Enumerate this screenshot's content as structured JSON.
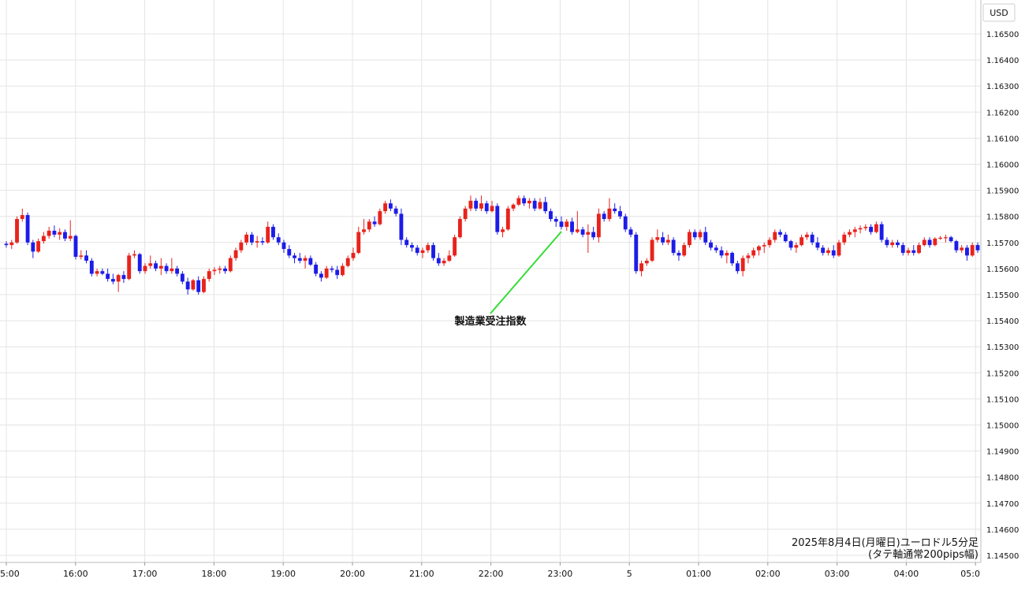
{
  "chart_data": {
    "type": "candlestick",
    "currency_label": "USD",
    "y_ticks": [
      "1.16500",
      "1.16400",
      "1.16300",
      "1.16200",
      "1.16100",
      "1.16000",
      "1.15900",
      "1.15800",
      "1.15700",
      "1.15600",
      "1.15500",
      "1.15400",
      "1.15300",
      "1.15200",
      "1.15100",
      "1.15000",
      "1.14900",
      "1.14800",
      "1.14700",
      "1.14600",
      "1.14500"
    ],
    "ylim": [
      1.1445,
      1.1655
    ],
    "x_ticks": [
      "5:00",
      "16:00",
      "17:00",
      "18:00",
      "19:00",
      "20:00",
      "21:00",
      "22:00",
      "23:00",
      "5",
      "01:00",
      "02:00",
      "03:00",
      "04:00",
      "05:0"
    ],
    "event_label": "製造業受注指数",
    "caption_line1": "2025年8月4日(月曜日)ユーロドル5分足",
    "caption_line2": "(タテ軸通常200pips幅)",
    "colors": {
      "up": "#e8231c",
      "down": "#1c1ce8",
      "grid": "#e4e4e4",
      "event_line": "#33dd33",
      "text": "#111111"
    },
    "candles": [
      [
        1.15695,
        1.15705,
        1.1568,
        1.1569
      ],
      [
        1.1569,
        1.1571,
        1.15675,
        1.157
      ],
      [
        1.157,
        1.158,
        1.15695,
        1.1579
      ],
      [
        1.1579,
        1.1583,
        1.1578,
        1.15805
      ],
      [
        1.15805,
        1.15815,
        1.1569,
        1.157
      ],
      [
        1.157,
        1.1571,
        1.1564,
        1.15665
      ],
      [
        1.15665,
        1.15715,
        1.1566,
        1.15705
      ],
      [
        1.15705,
        1.1574,
        1.15695,
        1.15725
      ],
      [
        1.15725,
        1.1576,
        1.15715,
        1.15745
      ],
      [
        1.15745,
        1.15765,
        1.1572,
        1.1573
      ],
      [
        1.1573,
        1.15755,
        1.1571,
        1.1574
      ],
      [
        1.1574,
        1.1575,
        1.15705,
        1.15715
      ],
      [
        1.15715,
        1.15785,
        1.15705,
        1.15725
      ],
      [
        1.15725,
        1.1573,
        1.15635,
        1.15645
      ],
      [
        1.15645,
        1.1567,
        1.15635,
        1.1565
      ],
      [
        1.1565,
        1.1567,
        1.1562,
        1.1563
      ],
      [
        1.1563,
        1.1564,
        1.1557,
        1.1558
      ],
      [
        1.1558,
        1.156,
        1.1557,
        1.1559
      ],
      [
        1.1559,
        1.156,
        1.15575,
        1.1558
      ],
      [
        1.1558,
        1.156,
        1.1555,
        1.1556
      ],
      [
        1.1556,
        1.1558,
        1.1554,
        1.1555
      ],
      [
        1.1555,
        1.1558,
        1.1551,
        1.15575
      ],
      [
        1.15575,
        1.1559,
        1.15545,
        1.1556
      ],
      [
        1.1556,
        1.1566,
        1.15555,
        1.1565
      ],
      [
        1.1565,
        1.1567,
        1.1564,
        1.15655
      ],
      [
        1.15655,
        1.1566,
        1.1558,
        1.1559
      ],
      [
        1.1559,
        1.1562,
        1.1558,
        1.1561
      ],
      [
        1.1561,
        1.1565,
        1.156,
        1.1562
      ],
      [
        1.1562,
        1.1563,
        1.1559,
        1.156
      ],
      [
        1.156,
        1.1564,
        1.15575,
        1.1561
      ],
      [
        1.1561,
        1.1562,
        1.1558,
        1.1559
      ],
      [
        1.1559,
        1.1564,
        1.1558,
        1.156
      ],
      [
        1.156,
        1.1561,
        1.1557,
        1.1558
      ],
      [
        1.1558,
        1.1559,
        1.1554,
        1.1555
      ],
      [
        1.1555,
        1.15565,
        1.155,
        1.1552
      ],
      [
        1.1552,
        1.1556,
        1.15515,
        1.15555
      ],
      [
        1.15555,
        1.1557,
        1.155,
        1.1551
      ],
      [
        1.1551,
        1.1557,
        1.15505,
        1.1556
      ],
      [
        1.1556,
        1.156,
        1.1555,
        1.1559
      ],
      [
        1.1559,
        1.15605,
        1.15575,
        1.15595
      ],
      [
        1.15595,
        1.1561,
        1.1558,
        1.156
      ],
      [
        1.156,
        1.1561,
        1.1558,
        1.1559
      ],
      [
        1.1559,
        1.1565,
        1.15585,
        1.1564
      ],
      [
        1.1564,
        1.1568,
        1.1563,
        1.1567
      ],
      [
        1.1567,
        1.1571,
        1.1566,
        1.157
      ],
      [
        1.157,
        1.1574,
        1.1569,
        1.1573
      ],
      [
        1.1573,
        1.1574,
        1.1569,
        1.157
      ],
      [
        1.157,
        1.15725,
        1.1568,
        1.15705
      ],
      [
        1.15705,
        1.1572,
        1.1569,
        1.157
      ],
      [
        1.157,
        1.1578,
        1.15695,
        1.1576
      ],
      [
        1.1576,
        1.1577,
        1.1571,
        1.1572
      ],
      [
        1.1572,
        1.15735,
        1.1569,
        1.157
      ],
      [
        1.157,
        1.1571,
        1.1566,
        1.15675
      ],
      [
        1.15675,
        1.1569,
        1.1564,
        1.1565
      ],
      [
        1.1565,
        1.1566,
        1.1562,
        1.1564
      ],
      [
        1.1564,
        1.1566,
        1.1562,
        1.1563
      ],
      [
        1.1563,
        1.1565,
        1.156,
        1.1564
      ],
      [
        1.1564,
        1.1565,
        1.1561,
        1.15615
      ],
      [
        1.15615,
        1.15625,
        1.1557,
        1.1558
      ],
      [
        1.1558,
        1.1559,
        1.1555,
        1.15565
      ],
      [
        1.15565,
        1.1561,
        1.1556,
        1.156
      ],
      [
        1.156,
        1.1561,
        1.15585,
        1.15595
      ],
      [
        1.15595,
        1.1561,
        1.1556,
        1.15575
      ],
      [
        1.15575,
        1.1562,
        1.1557,
        1.1561
      ],
      [
        1.1561,
        1.1565,
        1.15605,
        1.1564
      ],
      [
        1.1564,
        1.1568,
        1.1563,
        1.1566
      ],
      [
        1.1566,
        1.1576,
        1.15655,
        1.1574
      ],
      [
        1.1574,
        1.1579,
        1.1573,
        1.1575
      ],
      [
        1.1575,
        1.1579,
        1.1574,
        1.1578
      ],
      [
        1.1578,
        1.158,
        1.1576,
        1.1577
      ],
      [
        1.1577,
        1.1583,
        1.15765,
        1.1582
      ],
      [
        1.1582,
        1.1586,
        1.1581,
        1.1585
      ],
      [
        1.1585,
        1.15865,
        1.1582,
        1.1583
      ],
      [
        1.1583,
        1.1584,
        1.158,
        1.1581
      ],
      [
        1.1581,
        1.1583,
        1.1569,
        1.1571
      ],
      [
        1.1571,
        1.1572,
        1.1568,
        1.1569
      ],
      [
        1.1569,
        1.157,
        1.15665,
        1.1568
      ],
      [
        1.1568,
        1.1569,
        1.1565,
        1.1566
      ],
      [
        1.1566,
        1.1568,
        1.1564,
        1.1567
      ],
      [
        1.1567,
        1.157,
        1.1566,
        1.1569
      ],
      [
        1.1569,
        1.157,
        1.1563,
        1.1564
      ],
      [
        1.1564,
        1.1566,
        1.1561,
        1.1562
      ],
      [
        1.1562,
        1.1564,
        1.1561,
        1.1563
      ],
      [
        1.1563,
        1.1567,
        1.15625,
        1.1565
      ],
      [
        1.1565,
        1.1573,
        1.15645,
        1.1572
      ],
      [
        1.1572,
        1.158,
        1.15715,
        1.1579
      ],
      [
        1.1579,
        1.1584,
        1.1578,
        1.1583
      ],
      [
        1.1583,
        1.1588,
        1.1582,
        1.1586
      ],
      [
        1.1586,
        1.1587,
        1.1582,
        1.1583
      ],
      [
        1.1583,
        1.1588,
        1.1582,
        1.1585
      ],
      [
        1.1585,
        1.1586,
        1.1581,
        1.1582
      ],
      [
        1.1582,
        1.1586,
        1.15815,
        1.1584
      ],
      [
        1.1584,
        1.1585,
        1.1573,
        1.1574
      ],
      [
        1.1574,
        1.1576,
        1.1572,
        1.1575
      ],
      [
        1.1575,
        1.1584,
        1.15745,
        1.1583
      ],
      [
        1.1583,
        1.1585,
        1.1582,
        1.15845
      ],
      [
        1.15845,
        1.1588,
        1.1584,
        1.1587
      ],
      [
        1.1587,
        1.1588,
        1.1584,
        1.1585
      ],
      [
        1.1585,
        1.1587,
        1.1583,
        1.1586
      ],
      [
        1.1586,
        1.1587,
        1.1582,
        1.1583
      ],
      [
        1.1583,
        1.1587,
        1.15825,
        1.15855
      ],
      [
        1.15855,
        1.15875,
        1.1581,
        1.1582
      ],
      [
        1.1582,
        1.1583,
        1.1578,
        1.1579
      ],
      [
        1.1579,
        1.158,
        1.1576,
        1.1578
      ],
      [
        1.1578,
        1.158,
        1.1575,
        1.1576
      ],
      [
        1.1576,
        1.1579,
        1.15745,
        1.1578
      ],
      [
        1.1578,
        1.15795,
        1.1573,
        1.1574
      ],
      [
        1.1574,
        1.1582,
        1.15735,
        1.1575
      ],
      [
        1.1575,
        1.1576,
        1.1572,
        1.1573
      ],
      [
        1.1573,
        1.1577,
        1.1566,
        1.1574
      ],
      [
        1.1574,
        1.1576,
        1.1571,
        1.1572
      ],
      [
        1.1572,
        1.1583,
        1.157,
        1.1581
      ],
      [
        1.1581,
        1.1582,
        1.1578,
        1.1579
      ],
      [
        1.1579,
        1.1587,
        1.1578,
        1.1583
      ],
      [
        1.1583,
        1.1585,
        1.1581,
        1.1582
      ],
      [
        1.1582,
        1.1584,
        1.1579,
        1.158
      ],
      [
        1.158,
        1.1581,
        1.1574,
        1.1575
      ],
      [
        1.1575,
        1.1576,
        1.1572,
        1.1573
      ],
      [
        1.1573,
        1.1574,
        1.1558,
        1.1559
      ],
      [
        1.1559,
        1.1563,
        1.1557,
        1.1562
      ],
      [
        1.1562,
        1.1564,
        1.1561,
        1.1563
      ],
      [
        1.1563,
        1.1572,
        1.15625,
        1.1571
      ],
      [
        1.1571,
        1.1575,
        1.157,
        1.1572
      ],
      [
        1.1572,
        1.1574,
        1.1569,
        1.157
      ],
      [
        1.157,
        1.1573,
        1.1569,
        1.1571
      ],
      [
        1.1571,
        1.1572,
        1.1565,
        1.1566
      ],
      [
        1.1566,
        1.1567,
        1.1563,
        1.1565
      ],
      [
        1.1565,
        1.157,
        1.15645,
        1.1569
      ],
      [
        1.1569,
        1.1575,
        1.1568,
        1.1574
      ],
      [
        1.1574,
        1.1575,
        1.1571,
        1.1572
      ],
      [
        1.1572,
        1.1575,
        1.1571,
        1.1574
      ],
      [
        1.1574,
        1.1576,
        1.1569,
        1.157
      ],
      [
        1.157,
        1.1571,
        1.1567,
        1.1568
      ],
      [
        1.1568,
        1.1569,
        1.1566,
        1.1567
      ],
      [
        1.1567,
        1.15685,
        1.1564,
        1.1565
      ],
      [
        1.1565,
        1.1567,
        1.1562,
        1.1566
      ],
      [
        1.1566,
        1.15665,
        1.1561,
        1.1562
      ],
      [
        1.1562,
        1.1563,
        1.1558,
        1.1559
      ],
      [
        1.1559,
        1.1565,
        1.1557,
        1.1564
      ],
      [
        1.1564,
        1.1566,
        1.1562,
        1.1565
      ],
      [
        1.1565,
        1.1568,
        1.1564,
        1.1567
      ],
      [
        1.1567,
        1.1569,
        1.1565,
        1.15685
      ],
      [
        1.15685,
        1.157,
        1.1566,
        1.1569
      ],
      [
        1.1569,
        1.1572,
        1.1568,
        1.1571
      ],
      [
        1.1571,
        1.1575,
        1.157,
        1.1574
      ],
      [
        1.1574,
        1.1575,
        1.1572,
        1.1573
      ],
      [
        1.1573,
        1.1574,
        1.157,
        1.15705
      ],
      [
        1.15705,
        1.1571,
        1.1567,
        1.1568
      ],
      [
        1.1568,
        1.157,
        1.1566,
        1.1569
      ],
      [
        1.1569,
        1.1573,
        1.15685,
        1.1572
      ],
      [
        1.1572,
        1.1574,
        1.1571,
        1.1573
      ],
      [
        1.1573,
        1.1574,
        1.1569,
        1.157
      ],
      [
        1.157,
        1.1572,
        1.1567,
        1.1568
      ],
      [
        1.1568,
        1.1569,
        1.1565,
        1.1566
      ],
      [
        1.1566,
        1.1568,
        1.1565,
        1.1567
      ],
      [
        1.1567,
        1.1569,
        1.1564,
        1.1565
      ],
      [
        1.1565,
        1.1571,
        1.15645,
        1.157
      ],
      [
        1.157,
        1.1574,
        1.1569,
        1.1573
      ],
      [
        1.1573,
        1.1575,
        1.1572,
        1.1574
      ],
      [
        1.1574,
        1.1576,
        1.1572,
        1.1575
      ],
      [
        1.1575,
        1.15765,
        1.15735,
        1.15755
      ],
      [
        1.15755,
        1.1577,
        1.15745,
        1.1576
      ],
      [
        1.1576,
        1.1577,
        1.1573,
        1.1574
      ],
      [
        1.1574,
        1.1578,
        1.15735,
        1.1577
      ],
      [
        1.1577,
        1.1578,
        1.157,
        1.1571
      ],
      [
        1.1571,
        1.1572,
        1.1568,
        1.1569
      ],
      [
        1.1569,
        1.1571,
        1.1568,
        1.157
      ],
      [
        1.157,
        1.1571,
        1.1568,
        1.1569
      ],
      [
        1.1569,
        1.157,
        1.1565,
        1.1566
      ],
      [
        1.1566,
        1.1568,
        1.1565,
        1.1567
      ],
      [
        1.1567,
        1.1569,
        1.1565,
        1.1566
      ],
      [
        1.1566,
        1.157,
        1.15655,
        1.1569
      ],
      [
        1.1569,
        1.1572,
        1.15685,
        1.1571
      ],
      [
        1.1571,
        1.1572,
        1.1568,
        1.1569
      ],
      [
        1.1569,
        1.1572,
        1.15685,
        1.15715
      ],
      [
        1.15715,
        1.15725,
        1.1571,
        1.15718
      ],
      [
        1.15718,
        1.1573,
        1.157,
        1.1572
      ],
      [
        1.1572,
        1.15725,
        1.157,
        1.15705
      ],
      [
        1.15705,
        1.1571,
        1.1566,
        1.1567
      ],
      [
        1.1567,
        1.1569,
        1.1566,
        1.1568
      ],
      [
        1.1568,
        1.1569,
        1.1563,
        1.1565
      ],
      [
        1.1565,
        1.157,
        1.15645,
        1.1569
      ],
      [
        1.1569,
        1.157,
        1.1566,
        1.1567
      ]
    ]
  }
}
